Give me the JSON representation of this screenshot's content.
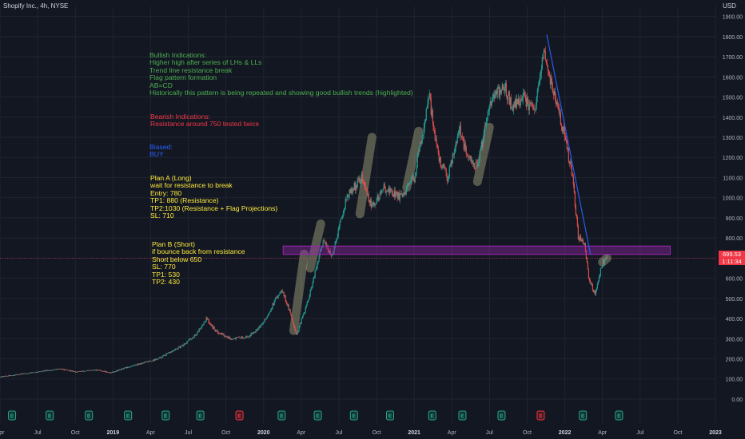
{
  "header": {
    "title": "Shopify Inc., 4h, NYSE",
    "currency": "USD"
  },
  "price_tag": {
    "price": "699.53",
    "countdown": "1:11:34"
  },
  "annotations": {
    "bullish": {
      "color": "#4caf50",
      "lines": [
        "Bullish Indications:",
        "Higher high after series of LHs & LLs",
        "Trend line resistance break",
        "Flag pattern formation",
        "AB=CD",
        "Historically this pattern is being repeated and showing good bullish trends (highlighted)"
      ]
    },
    "bearish": {
      "color": "#f23645",
      "lines": [
        "Bearish Indications:",
        "Resistance around 750 tested twice"
      ]
    },
    "biased": {
      "color": "#2962ff",
      "lines": [
        "Biased:",
        "BUY"
      ]
    },
    "plan_a": {
      "color": "#ffeb3b",
      "lines": [
        "Plan A (Long)",
        "wait for resistance to break",
        "Entry: 780",
        "TP1: 880 (Resistance)",
        "TP2:1030 (Resistance + Flag Projections)",
        "SL: 710"
      ]
    },
    "plan_b": {
      "color": "#ffeb3b",
      "lines": [
        "Plan B (Short)",
        "if bounce back from resistance",
        "Short below 650",
        "SL: 770",
        "TP1: 530",
        "TP2: 430"
      ]
    }
  },
  "chart_data": {
    "type": "candlestick",
    "title": "Shopify Inc., 4h, NYSE",
    "y_axis": {
      "ticks": [
        "1900.00",
        "1800.00",
        "1700.00",
        "1600.00",
        "1500.00",
        "1400.00",
        "1300.00",
        "1200.00",
        "1100.00",
        "1000.00",
        "900.00",
        "800.00",
        "700.00",
        "600.00",
        "500.00",
        "400.00",
        "300.00",
        "200.00",
        "100.00",
        "0.00"
      ],
      "range": [
        -20,
        1950
      ]
    },
    "x_axis": {
      "ticks": [
        {
          "label": "Apr",
          "year": false,
          "t": 2018.25
        },
        {
          "label": "Jul",
          "year": false,
          "t": 2018.5
        },
        {
          "label": "Oct",
          "year": false,
          "t": 2018.75
        },
        {
          "label": "2019",
          "year": true,
          "t": 2019.0
        },
        {
          "label": "Apr",
          "year": false,
          "t": 2019.25
        },
        {
          "label": "Jul",
          "year": false,
          "t": 2019.5
        },
        {
          "label": "Oct",
          "year": false,
          "t": 2019.75
        },
        {
          "label": "2020",
          "year": true,
          "t": 2020.0
        },
        {
          "label": "Apr",
          "year": false,
          "t": 2020.25
        },
        {
          "label": "Jul",
          "year": false,
          "t": 2020.5
        },
        {
          "label": "Oct",
          "year": false,
          "t": 2020.75
        },
        {
          "label": "2021",
          "year": true,
          "t": 2021.0
        },
        {
          "label": "Apr",
          "year": false,
          "t": 2021.25
        },
        {
          "label": "Jul",
          "year": false,
          "t": 2021.5
        },
        {
          "label": "Oct",
          "year": false,
          "t": 2021.75
        },
        {
          "label": "2022",
          "year": true,
          "t": 2022.0
        },
        {
          "label": "Apr",
          "year": false,
          "t": 2022.25
        },
        {
          "label": "Jul",
          "year": false,
          "t": 2022.5
        },
        {
          "label": "Oct",
          "year": false,
          "t": 2022.75
        },
        {
          "label": "2023",
          "year": true,
          "t": 2023.0
        }
      ],
      "range": [
        2018.25,
        2023.0
      ]
    },
    "price_path": [
      [
        2018.25,
        110
      ],
      [
        2018.45,
        130
      ],
      [
        2018.65,
        150
      ],
      [
        2018.75,
        135
      ],
      [
        2018.9,
        145
      ],
      [
        2018.98,
        130
      ],
      [
        2019.15,
        170
      ],
      [
        2019.3,
        200
      ],
      [
        2019.45,
        260
      ],
      [
        2019.55,
        320
      ],
      [
        2019.62,
        400
      ],
      [
        2019.68,
        340
      ],
      [
        2019.78,
        300
      ],
      [
        2019.9,
        310
      ],
      [
        2020.0,
        380
      ],
      [
        2020.12,
        550
      ],
      [
        2020.18,
        420
      ],
      [
        2020.22,
        320
      ],
      [
        2020.3,
        500
      ],
      [
        2020.4,
        800
      ],
      [
        2020.45,
        700
      ],
      [
        2020.55,
        1000
      ],
      [
        2020.65,
        1100
      ],
      [
        2020.72,
        950
      ],
      [
        2020.8,
        1050
      ],
      [
        2020.92,
        1000
      ],
      [
        2021.0,
        1100
      ],
      [
        2021.1,
        1500
      ],
      [
        2021.16,
        1200
      ],
      [
        2021.22,
        1100
      ],
      [
        2021.3,
        1350
      ],
      [
        2021.35,
        1200
      ],
      [
        2021.42,
        1150
      ],
      [
        2021.5,
        1480
      ],
      [
        2021.6,
        1550
      ],
      [
        2021.65,
        1450
      ],
      [
        2021.72,
        1500
      ],
      [
        2021.8,
        1420
      ],
      [
        2021.86,
        1720
      ],
      [
        2021.9,
        1600
      ],
      [
        2022.0,
        1300
      ],
      [
        2022.05,
        1100
      ],
      [
        2022.09,
        800
      ],
      [
        2022.13,
        780
      ],
      [
        2022.16,
        600
      ],
      [
        2022.2,
        520
      ],
      [
        2022.25,
        680
      ],
      [
        2022.28,
        700
      ]
    ],
    "earnings_markers": [
      {
        "label": "E",
        "t": 2018.33,
        "type": "neutral"
      },
      {
        "label": "E",
        "t": 2018.58,
        "type": "neutral"
      },
      {
        "label": "E",
        "t": 2018.84,
        "type": "neutral"
      },
      {
        "label": "E",
        "t": 2019.1,
        "type": "neutral"
      },
      {
        "label": "E",
        "t": 2019.35,
        "type": "neutral"
      },
      {
        "label": "E",
        "t": 2019.58,
        "type": "neutral"
      },
      {
        "label": "E",
        "t": 2019.84,
        "type": "negative"
      },
      {
        "label": "E",
        "t": 2020.12,
        "type": "neutral"
      },
      {
        "label": "E",
        "t": 2020.36,
        "type": "neutral"
      },
      {
        "label": "E",
        "t": 2020.6,
        "type": "neutral"
      },
      {
        "label": "E",
        "t": 2020.84,
        "type": "neutral"
      },
      {
        "label": "E",
        "t": 2021.12,
        "type": "neutral"
      },
      {
        "label": "E",
        "t": 2021.32,
        "type": "neutral"
      },
      {
        "label": "E",
        "t": 2021.58,
        "type": "neutral"
      },
      {
        "label": "E",
        "t": 2021.84,
        "type": "negative"
      },
      {
        "label": "E",
        "t": 2022.12,
        "type": "neutral"
      },
      {
        "label": "E",
        "t": 2022.36,
        "type": "neutral"
      }
    ],
    "resistance_zone": {
      "t_start": 2020.13,
      "t_end": 2022.7,
      "low": 718,
      "high": 760
    },
    "trend_line": {
      "t1": 2021.88,
      "p1": 1810,
      "t2": 2022.17,
      "p2": 720
    },
    "current_price": 699.53
  },
  "colors": {
    "up": "#26a69a",
    "down": "#ef5350",
    "grid": "#1f2430",
    "text": "#b2b5be",
    "zone": "#9c27b0",
    "trend": "#2962ff"
  }
}
